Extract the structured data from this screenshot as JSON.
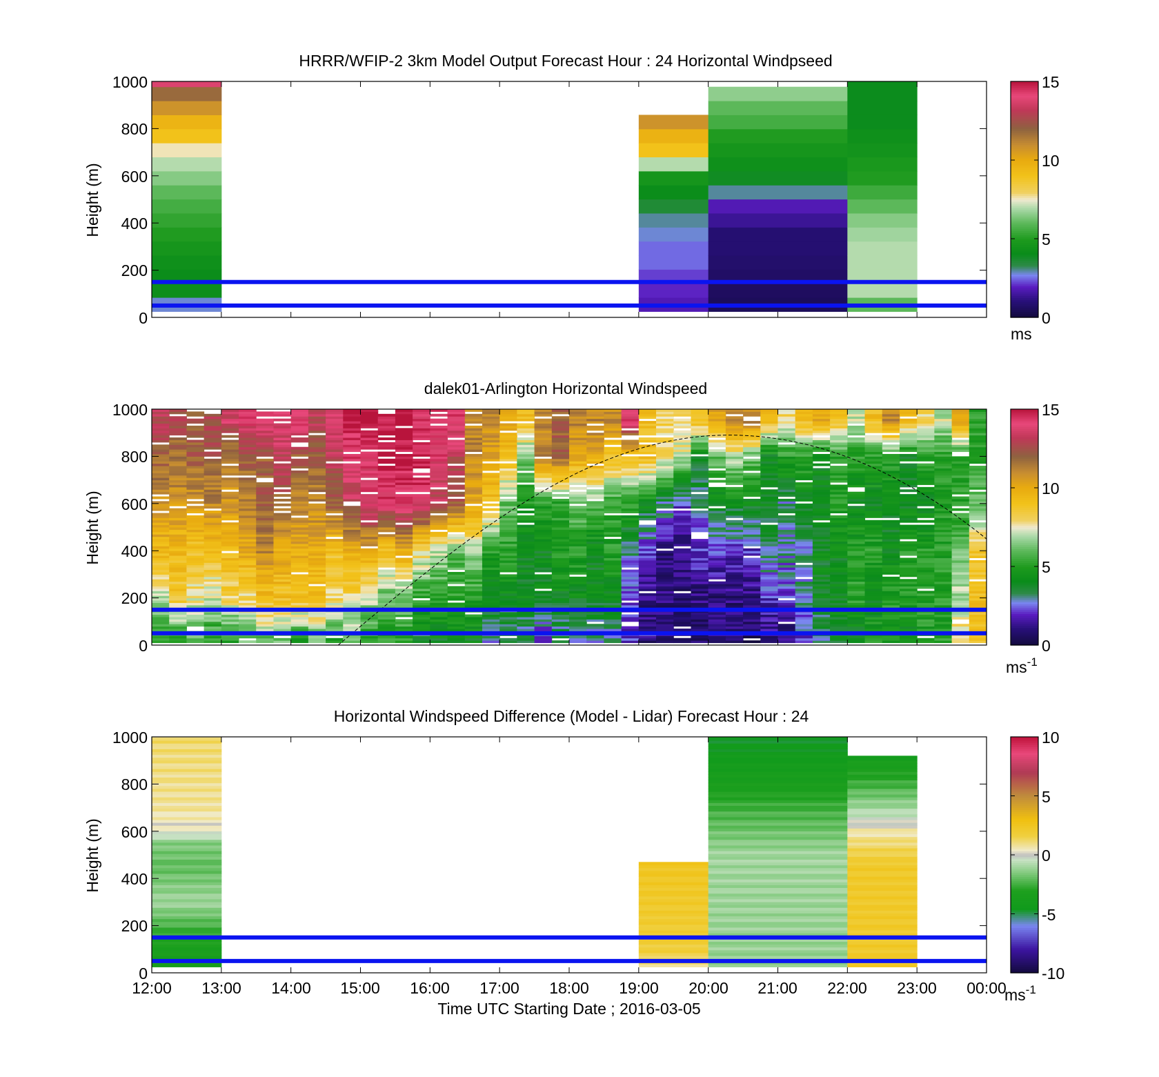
{
  "chart_data": [
    {
      "type": "heatmap",
      "title": "HRRR/WFIP-2 3km Model Output   Forecast Hour : 24 Horizontal Windpseed",
      "ylabel": "Height (m)",
      "ylim": [
        0,
        1000
      ],
      "yticks": [
        "0",
        "200",
        "400",
        "600",
        "800",
        "1000"
      ],
      "colorbar": {
        "min": 0,
        "max": 15,
        "ticks": [
          "0",
          "5",
          "10",
          "15"
        ],
        "unit": "ms",
        "unit_sup": "",
        "palette": "speed"
      },
      "reference_lines_m": [
        50,
        150
      ],
      "show_xticklabels": false,
      "columns": [
        {
          "t": 0,
          "dt": 1,
          "bottom": 25,
          "values": [
            2.8,
            4.2,
            4.1,
            4.3,
            4.6,
            5.0,
            5.3,
            5.6,
            6.0,
            6.5,
            7.0,
            7.6,
            9.0,
            9.6,
            10.8,
            11.8,
            13.8
          ]
        },
        {
          "t": 7,
          "dt": 1,
          "bottom": 25,
          "values": [
            1.8,
            2.0,
            2.2,
            2.5,
            2.5,
            2.8,
            3.0,
            3.6,
            4.1,
            4.6,
            7.0,
            9.0,
            9.7,
            10.8
          ]
        },
        {
          "t": 8,
          "dt": 2,
          "bottom": 25,
          "values": [
            0.5,
            0.6,
            0.7,
            0.8,
            0.9,
            0.9,
            1.4,
            1.8,
            3.0,
            3.9,
            4.3,
            4.6,
            5.0,
            5.6,
            6.0,
            6.6
          ]
        },
        {
          "t": 10,
          "dt": 1,
          "bottom": 25,
          "values": [
            6.0,
            7.0,
            7.0,
            7.0,
            7.0,
            6.8,
            6.5,
            6.0,
            5.5,
            5.0,
            4.8,
            4.5,
            4.3,
            4.0,
            4.0,
            4.0,
            4.0,
            4.0
          ]
        }
      ]
    },
    {
      "type": "heatmap",
      "title": "dalek01-Arlington  Horizontal Windspeed",
      "ylabel": "Height (m)",
      "ylim": [
        0,
        1000
      ],
      "yticks": [
        "0",
        "200",
        "400",
        "600",
        "800",
        "1000"
      ],
      "colorbar": {
        "min": 0,
        "max": 15,
        "ticks": [
          "0",
          "5",
          "10",
          "15"
        ],
        "unit": "ms",
        "unit_sup": "-1",
        "palette": "speed"
      },
      "reference_lines_m": [
        50,
        150
      ],
      "show_xticklabels": false,
      "solar_curve": {
        "start_h": 2.68,
        "end_h": 12.0,
        "peak_h": 8.3,
        "peak_m": 890,
        "end_m": 450
      },
      "column_profiles": [
        {
          "t": 0.0,
          "v": [
            5,
            7,
            9.5,
            10.5,
            12,
            13
          ]
        },
        {
          "t": 0.25,
          "v": [
            5,
            8.5,
            9.5,
            10.5,
            11.5,
            12.5
          ]
        },
        {
          "t": 0.5,
          "v": [
            6,
            7.5,
            9,
            10.5,
            12,
            12
          ]
        },
        {
          "t": 0.75,
          "v": [
            5,
            7,
            9,
            11,
            12,
            12.5
          ]
        },
        {
          "t": 1.0,
          "v": [
            5,
            8,
            9.5,
            10.5,
            11,
            13.5
          ]
        },
        {
          "t": 1.25,
          "v": [
            6,
            8,
            10,
            11,
            12,
            14
          ]
        },
        {
          "t": 1.5,
          "v": [
            6,
            9,
            11,
            12,
            12,
            14
          ]
        },
        {
          "t": 1.75,
          "v": [
            6,
            9,
            10,
            12,
            13,
            14
          ]
        },
        {
          "t": 2.0,
          "v": [
            5,
            9,
            10,
            11,
            12,
            14
          ]
        },
        {
          "t": 2.25,
          "v": [
            6,
            9,
            10,
            11,
            12,
            13
          ]
        },
        {
          "t": 2.5,
          "v": [
            5,
            8,
            9,
            12,
            13,
            14
          ]
        },
        {
          "t": 2.75,
          "v": [
            6,
            8,
            10,
            13,
            14,
            15
          ]
        },
        {
          "t": 3.0,
          "v": [
            5,
            7,
            10,
            14,
            14,
            15
          ]
        },
        {
          "t": 3.25,
          "v": [
            5,
            6,
            9,
            14,
            15,
            15
          ]
        },
        {
          "t": 3.5,
          "v": [
            5,
            6,
            10,
            14,
            15,
            15
          ]
        },
        {
          "t": 3.75,
          "v": [
            4,
            5,
            8,
            14,
            15,
            14
          ]
        },
        {
          "t": 4.0,
          "v": [
            4,
            5,
            7,
            13,
            14,
            14
          ]
        },
        {
          "t": 4.25,
          "v": [
            4,
            5,
            6,
            12,
            13,
            14
          ]
        },
        {
          "t": 4.5,
          "v": [
            4,
            5,
            7,
            10,
            11,
            11
          ]
        },
        {
          "t": 4.75,
          "v": [
            3,
            4,
            5,
            9,
            10,
            11
          ]
        },
        {
          "t": 5.0,
          "v": [
            3,
            4,
            5,
            6,
            9,
            10
          ]
        },
        {
          "t": 5.25,
          "v": [
            3,
            4,
            4,
            5,
            6,
            9
          ]
        },
        {
          "t": 5.5,
          "v": [
            2,
            4,
            4,
            5,
            11,
            11
          ]
        },
        {
          "t": 5.75,
          "v": [
            3,
            4,
            5,
            5,
            12,
            12
          ]
        },
        {
          "t": 6.0,
          "v": [
            3,
            4,
            5,
            6,
            10,
            11
          ]
        },
        {
          "t": 6.25,
          "v": [
            3,
            4,
            4,
            6,
            10,
            11
          ]
        },
        {
          "t": 6.5,
          "v": [
            3,
            4,
            5,
            5,
            9,
            11
          ]
        },
        {
          "t": 6.75,
          "v": [
            2,
            2,
            3,
            5,
            9,
            14
          ]
        },
        {
          "t": 7.0,
          "v": [
            1,
            1,
            2,
            4,
            9,
            9
          ]
        },
        {
          "t": 7.25,
          "v": [
            1,
            1,
            1,
            3,
            8,
            8
          ]
        },
        {
          "t": 7.5,
          "v": [
            1,
            1,
            1,
            2,
            7,
            8
          ]
        },
        {
          "t": 7.75,
          "v": [
            1,
            1,
            2,
            3,
            4,
            9
          ]
        },
        {
          "t": 8.0,
          "v": [
            1,
            1,
            2,
            4,
            6,
            10
          ]
        },
        {
          "t": 8.25,
          "v": [
            1,
            1,
            2,
            4,
            7,
            11
          ]
        },
        {
          "t": 8.5,
          "v": [
            0.5,
            1,
            2,
            4,
            6,
            11
          ]
        },
        {
          "t": 8.75,
          "v": [
            1,
            2,
            3,
            4,
            4,
            9
          ]
        },
        {
          "t": 9.0,
          "v": [
            1,
            2,
            3,
            3,
            5,
            8
          ]
        },
        {
          "t": 9.25,
          "v": [
            2,
            3,
            3,
            4,
            5,
            9
          ]
        },
        {
          "t": 9.5,
          "v": [
            3,
            4,
            4,
            4,
            4,
            10
          ]
        },
        {
          "t": 9.75,
          "v": [
            4,
            4,
            4,
            5,
            5,
            9
          ]
        },
        {
          "t": 10.0,
          "v": [
            4,
            5,
            5,
            4,
            5,
            7
          ]
        },
        {
          "t": 10.25,
          "v": [
            5,
            4,
            5,
            4,
            5,
            9
          ]
        },
        {
          "t": 10.5,
          "v": [
            5,
            5,
            4,
            4,
            5,
            11
          ]
        },
        {
          "t": 10.75,
          "v": [
            4,
            5,
            5,
            4,
            4,
            9
          ]
        },
        {
          "t": 11.0,
          "v": [
            5,
            5,
            5,
            4,
            5,
            8
          ]
        },
        {
          "t": 11.25,
          "v": [
            5,
            5,
            5,
            5,
            5,
            7
          ]
        },
        {
          "t": 11.5,
          "v": [
            8,
            7,
            6,
            5,
            5,
            10
          ]
        },
        {
          "t": 11.75,
          "v": [
            9,
            9,
            9,
            6,
            5,
            5
          ]
        }
      ]
    },
    {
      "type": "heatmap",
      "title": "Horizontal Windspeed Difference (Model - Lidar) Forecast Hour : 24",
      "ylabel": "Height (m)",
      "xlabel": "Time UTC  Starting Date ; 2016-03-05",
      "ylim": [
        0,
        1000
      ],
      "yticks": [
        "0",
        "200",
        "400",
        "600",
        "800",
        "1000"
      ],
      "xticks": [
        "12:00",
        "13:00",
        "14:00",
        "15:00",
        "16:00",
        "17:00",
        "18:00",
        "19:00",
        "20:00",
        "21:00",
        "22:00",
        "23:00",
        "00:00"
      ],
      "colorbar": {
        "min": -10,
        "max": 10,
        "ticks": [
          "-10",
          "-5",
          "0",
          "5",
          "10"
        ],
        "unit": "ms",
        "unit_sup": "-1",
        "palette": "diff"
      },
      "reference_lines_m": [
        50,
        150
      ],
      "show_xticklabels": true,
      "columns": [
        {
          "t": 0,
          "dt": 1,
          "bottom": 25,
          "top": 1000,
          "profile": [
            [
              0,
              -4.0
            ],
            [
              150,
              -3.0
            ],
            [
              300,
              -1.0
            ],
            [
              450,
              -2.0
            ],
            [
              550,
              -1.5
            ],
            [
              600,
              0.2
            ],
            [
              700,
              0.8
            ],
            [
              1000,
              1.2
            ]
          ]
        },
        {
          "t": 7,
          "dt": 1,
          "bottom": 25,
          "top": 470,
          "profile": [
            [
              0,
              0.8
            ],
            [
              100,
              1.8
            ],
            [
              470,
              2.5
            ]
          ]
        },
        {
          "t": 8,
          "dt": 2,
          "bottom": 25,
          "top": 1000,
          "profile": [
            [
              0,
              -1.2
            ],
            [
              500,
              -1.0
            ],
            [
              600,
              -1.8
            ],
            [
              700,
              -2.5
            ],
            [
              800,
              -3.5
            ],
            [
              900,
              -4.2
            ],
            [
              1000,
              -4.6
            ]
          ]
        },
        {
          "t": 10,
          "dt": 1,
          "bottom": 25,
          "top": 920,
          "profile": [
            [
              0,
              2.2
            ],
            [
              450,
              2.2
            ],
            [
              600,
              0.6
            ],
            [
              700,
              -1.0
            ],
            [
              800,
              -2.5
            ],
            [
              920,
              -4.0
            ]
          ]
        }
      ]
    }
  ]
}
